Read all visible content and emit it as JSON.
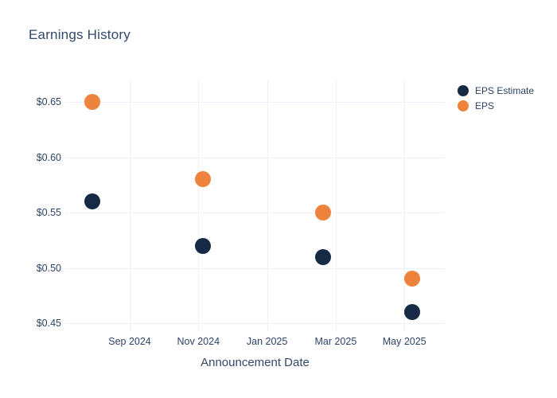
{
  "title": "Earnings History",
  "colors": {
    "eps_estimate": "#162a46",
    "eps": "#ee833d",
    "text": "#2e4368",
    "title_text": "#33496b",
    "gridline": "#edf1f9",
    "background": "#ffffff"
  },
  "chart_data": {
    "type": "scatter",
    "title": "Earnings History",
    "xlabel": "Announcement Date",
    "ylabel": "",
    "grid": true,
    "legend_position": "right",
    "y_ticks": [
      {
        "value": 0.65,
        "label": "$0.65"
      },
      {
        "value": 0.6,
        "label": "$0.60"
      },
      {
        "value": 0.55,
        "label": "$0.55"
      },
      {
        "value": 0.5,
        "label": "$0.50"
      },
      {
        "value": 0.45,
        "label": "$0.45"
      }
    ],
    "x_ticks": [
      {
        "date": "2024-09-01",
        "label": "Sep 2024"
      },
      {
        "date": "2024-11-01",
        "label": "Nov 2024"
      },
      {
        "date": "2025-01-01",
        "label": "Jan 2025"
      },
      {
        "date": "2025-03-01",
        "label": "Mar 2025"
      },
      {
        "date": "2025-05-01",
        "label": "May 2025"
      }
    ],
    "x_range_dates": [
      "2024-07-05",
      "2025-06-06"
    ],
    "y_range": [
      0.442,
      0.67
    ],
    "series": [
      {
        "name": "EPS Estimate",
        "color": "#162a46",
        "points": [
          {
            "date": "2024-07-29",
            "value": 0.56
          },
          {
            "date": "2024-11-05",
            "value": 0.52
          },
          {
            "date": "2025-02-20",
            "value": 0.51
          },
          {
            "date": "2025-05-08",
            "value": 0.46
          }
        ]
      },
      {
        "name": "EPS",
        "color": "#ee833d",
        "points": [
          {
            "date": "2024-07-29",
            "value": 0.65
          },
          {
            "date": "2024-11-05",
            "value": 0.58
          },
          {
            "date": "2025-02-20",
            "value": 0.55
          },
          {
            "date": "2025-05-08",
            "value": 0.49
          }
        ]
      }
    ]
  }
}
